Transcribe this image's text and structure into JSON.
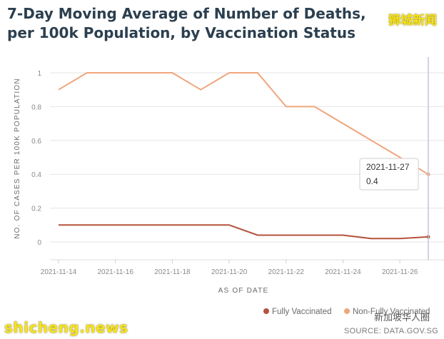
{
  "title": "7-Day Moving Average of Number of Deaths, per 100k Population, by Vaccination Status",
  "watermarks": {
    "top_right": "狮城新闻",
    "bottom_left": "shicheng.news",
    "bottom_right": "新加坡华人圈"
  },
  "source": "SOURCE: DATA.GOV.SG",
  "tooltip": {
    "date": "2021-11-27",
    "value": "0.4"
  },
  "chart_data": {
    "type": "line",
    "xlabel": "AS OF DATE",
    "ylabel": "NO. OF CASES PER 100K POPULATION",
    "ylim": [
      0,
      1
    ],
    "yticks": [
      "0",
      "0.2",
      "0.4",
      "0.6",
      "0.8",
      "1"
    ],
    "xticks": [
      "2021-11-14",
      "2021-11-16",
      "2021-11-18",
      "2021-11-20",
      "2021-11-22",
      "2021-11-24",
      "2021-11-26"
    ],
    "x": [
      "2021-11-14",
      "2021-11-15",
      "2021-11-16",
      "2021-11-17",
      "2021-11-18",
      "2021-11-19",
      "2021-11-20",
      "2021-11-21",
      "2021-11-22",
      "2021-11-23",
      "2021-11-24",
      "2021-11-25",
      "2021-11-26",
      "2021-11-27"
    ],
    "series": [
      {
        "name": "Fully Vaccinated",
        "color": "#b5533c",
        "values": [
          0.1,
          0.1,
          0.1,
          0.1,
          0.1,
          0.1,
          0.1,
          0.04,
          0.04,
          0.04,
          0.04,
          0.02,
          0.02,
          0.03
        ]
      },
      {
        "name": "Non-Fully Vaccinated",
        "color": "#f0a57c",
        "values": [
          0.9,
          1,
          1,
          1,
          1,
          0.9,
          1,
          1,
          0.8,
          0.8,
          0.7,
          0.6,
          0.5,
          0.4
        ]
      }
    ],
    "legend": "bottom-right",
    "grid": "horizontal"
  }
}
